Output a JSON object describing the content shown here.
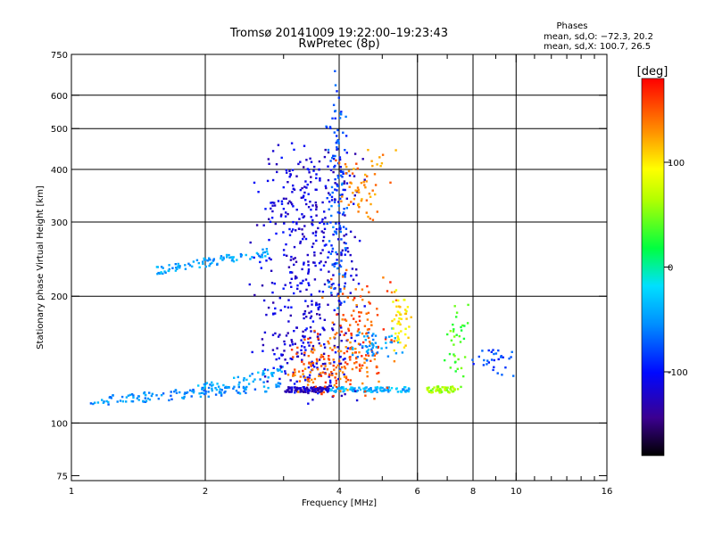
{
  "chart_data": {
    "type": "scatter",
    "title": "Tromsø 20141009 19:22:00–19:23:43",
    "subtitle": "RwPretec (8p)",
    "xlabel": "Frequency [MHz]",
    "ylabel": "Stationary phase Virtual Height [km]",
    "x_scale": "log",
    "y_scale": "log",
    "xlim": [
      1,
      16
    ],
    "ylim": [
      73,
      750
    ],
    "x_ticks": [
      1,
      2,
      4,
      6,
      8,
      10,
      16
    ],
    "x_minor_ticks": [
      3,
      5,
      7,
      9,
      11,
      12,
      13,
      14,
      15
    ],
    "x_gridlines": [
      2,
      4,
      6,
      8,
      10
    ],
    "y_ticks": [
      75,
      100,
      200,
      300,
      400,
      500,
      600,
      750
    ],
    "y_gridlines": [
      100,
      200,
      300,
      400,
      500,
      600
    ],
    "grid": true,
    "legend_title": "Phases",
    "legend_lines": [
      "mean, sd,O: −72.3, 20.2",
      "mean, sd,X: 100.7, 26.5"
    ],
    "legend_position": "top-right",
    "colorbar": {
      "label": "[deg]",
      "min": -180,
      "max": 180,
      "ticks": [
        -100,
        0,
        100
      ],
      "colormap": "rainbow"
    },
    "clusters": [
      {
        "x": [
          1.1,
          3.0
        ],
        "y": [
          112,
          123
        ],
        "phase": -55,
        "count": 130,
        "x_spread": 0.0,
        "y_jitter": 0.012
      },
      {
        "x": [
          1.8,
          3.0
        ],
        "y": [
          118,
          133
        ],
        "phase": -45,
        "count": 50,
        "x_spread": 0.0,
        "y_jitter": 0.012
      },
      {
        "x": [
          1.55,
          2.8
        ],
        "y": [
          230,
          255
        ],
        "phase": -45,
        "count": 90,
        "x_spread": 0.0,
        "y_jitter": 0.01
      },
      {
        "x": [
          3.0,
          3.8
        ],
        "y": [
          120,
          120
        ],
        "phase": -125,
        "count": 110,
        "x_spread": 0.0,
        "y_jitter": 0.006
      },
      {
        "x": [
          3.8,
          5.8
        ],
        "y": [
          120,
          120
        ],
        "phase": -40,
        "count": 100,
        "x_spread": 0.0,
        "y_jitter": 0.006
      },
      {
        "x": [
          2.9,
          4.0
        ],
        "y": [
          125,
          420
        ],
        "phase": -115,
        "count": 520,
        "x_spread": 0.07,
        "y_jitter": 0.06
      },
      {
        "x": [
          3.9,
          4.0
        ],
        "y": [
          200,
          640
        ],
        "phase": -75,
        "count": 120,
        "x_spread": 0.02,
        "y_jitter": 0.04
      },
      {
        "x": [
          3.3,
          4.6
        ],
        "y": [
          125,
          150
        ],
        "phase": 145,
        "count": 160,
        "x_spread": 0.05,
        "y_jitter": 0.05
      },
      {
        "x": [
          4.0,
          5.0
        ],
        "y": [
          150,
          200
        ],
        "phase": 150,
        "count": 90,
        "x_spread": 0.05,
        "y_jitter": 0.07
      },
      {
        "x": [
          4.5,
          5.2
        ],
        "y": [
          148,
          162
        ],
        "phase": -50,
        "count": 50,
        "x_spread": 0.03,
        "y_jitter": 0.03
      },
      {
        "x": [
          4.2,
          5.0
        ],
        "y": [
          330,
          420
        ],
        "phase": 135,
        "count": 60,
        "x_spread": 0.04,
        "y_jitter": 0.04
      },
      {
        "x": [
          5.4,
          5.6
        ],
        "y": [
          160,
          190
        ],
        "phase": 100,
        "count": 45,
        "x_spread": 0.02,
        "y_jitter": 0.05
      },
      {
        "x": [
          6.3,
          7.4
        ],
        "y": [
          120,
          120
        ],
        "phase": 60,
        "count": 60,
        "x_spread": 0.0,
        "y_jitter": 0.008
      },
      {
        "x": [
          7.2,
          7.5
        ],
        "y": [
          125,
          170
        ],
        "phase": 40,
        "count": 35,
        "x_spread": 0.02,
        "y_jitter": 0.06
      },
      {
        "x": [
          8.2,
          9.5
        ],
        "y": [
          135,
          145
        ],
        "phase": -80,
        "count": 30,
        "x_spread": 0.03,
        "y_jitter": 0.03
      }
    ]
  }
}
